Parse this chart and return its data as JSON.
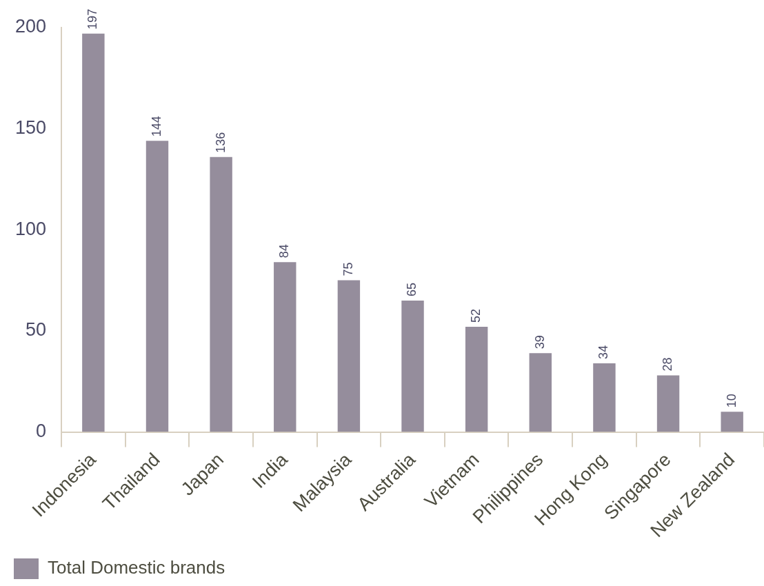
{
  "chart_data": {
    "type": "bar",
    "categories": [
      "Indonesia",
      "Thailand",
      "Japan",
      "India",
      "Malaysia",
      "Australia",
      "Vietnam",
      "Philippines",
      "Hong Kong",
      "Singapore",
      "New Zealand"
    ],
    "series": [
      {
        "name": "Total Domestic brands",
        "color": "#958d9c",
        "values": [
          197,
          144,
          136,
          84,
          75,
          65,
          52,
          39,
          34,
          28,
          10
        ]
      }
    ],
    "ylim": [
      0,
      200
    ],
    "yticks": [
      0,
      50,
      100,
      150,
      200
    ],
    "grid": false,
    "legend": "bottom left",
    "data_labels": true
  }
}
